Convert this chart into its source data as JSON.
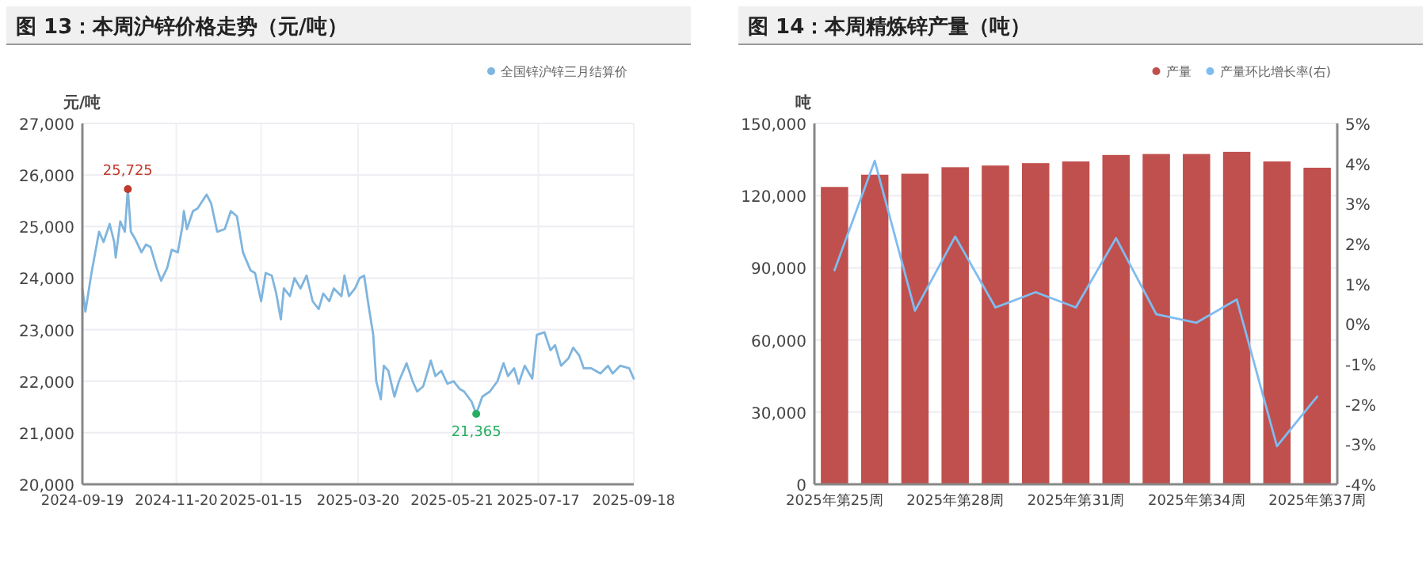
{
  "chart_data": [
    {
      "type": "line",
      "title": "图 13：本周沪锌价格走势（元/吨）",
      "ylabel": "元/吨",
      "legend": "top right",
      "grid": true,
      "marker": "none",
      "line_style": "solid",
      "xlim": [
        "2024-09-19",
        "2025-09-18"
      ],
      "xticks": [
        "2024-09-19",
        "2024-11-20",
        "2025-01-15",
        "2025-03-20",
        "2025-05-21",
        "2025-07-17",
        "2025-09-18"
      ],
      "ylim": [
        20000,
        27000
      ],
      "yticks": [
        {
          "value": 20000,
          "label": "20,000"
        },
        {
          "value": 21000,
          "label": "21,000"
        },
        {
          "value": 22000,
          "label": "22,000"
        },
        {
          "value": 23000,
          "label": "23,000"
        },
        {
          "value": 24000,
          "label": "24,000"
        },
        {
          "value": 25000,
          "label": "25,000"
        },
        {
          "value": 26000,
          "label": "26,000"
        },
        {
          "value": 27000,
          "label": "27,000"
        }
      ],
      "x": [
        "2024-09-19",
        "2024-09-21",
        "2024-09-25",
        "2024-09-30",
        "2024-10-03",
        "2024-10-07",
        "2024-10-10",
        "2024-10-11",
        "2024-10-14",
        "2024-10-17",
        "2024-10-19",
        "2024-10-21",
        "2024-10-24",
        "2024-10-28",
        "2024-10-31",
        "2024-11-03",
        "2024-11-07",
        "2024-11-10",
        "2024-11-14",
        "2024-11-17",
        "2024-11-21",
        "2024-11-24",
        "2024-11-25",
        "2024-11-27",
        "2024-12-01",
        "2024-12-04",
        "2024-12-10",
        "2024-12-13",
        "2024-12-17",
        "2024-12-22",
        "2024-12-26",
        "2024-12-30",
        "2025-01-03",
        "2025-01-08",
        "2025-01-11",
        "2025-01-15",
        "2025-01-18",
        "2025-01-22",
        "2025-01-25",
        "2025-01-28",
        "2025-01-30",
        "2025-02-03",
        "2025-02-06",
        "2025-02-10",
        "2025-02-14",
        "2025-02-18",
        "2025-02-22",
        "2025-02-25",
        "2025-03-01",
        "2025-03-04",
        "2025-03-09",
        "2025-03-11",
        "2025-03-14",
        "2025-03-18",
        "2025-03-21",
        "2025-03-24",
        "2025-03-27",
        "2025-03-30",
        "2025-04-01",
        "2025-04-04",
        "2025-04-06",
        "2025-04-09",
        "2025-04-13",
        "2025-04-16",
        "2025-04-21",
        "2025-04-25",
        "2025-04-28",
        "2025-05-02",
        "2025-05-07",
        "2025-05-10",
        "2025-05-14",
        "2025-05-18",
        "2025-05-22",
        "2025-05-26",
        "2025-05-29",
        "2025-06-03",
        "2025-06-06",
        "2025-06-10",
        "2025-06-15",
        "2025-06-20",
        "2025-06-24",
        "2025-06-27",
        "2025-07-01",
        "2025-07-04",
        "2025-07-08",
        "2025-07-13",
        "2025-07-16",
        "2025-07-21",
        "2025-07-25",
        "2025-07-28",
        "2025-08-01",
        "2025-08-06",
        "2025-08-09",
        "2025-08-13",
        "2025-08-16",
        "2025-08-21",
        "2025-08-27",
        "2025-09-01",
        "2025-09-04",
        "2025-09-09",
        "2025-09-15",
        "2025-09-18"
      ],
      "series": [
        {
          "name": "全国锌沪锌三月结算价",
          "color": "#7fb5de",
          "values": [
            23800,
            23350,
            24100,
            24900,
            24700,
            25050,
            24700,
            24400,
            25100,
            24900,
            25725,
            24900,
            24750,
            24500,
            24650,
            24600,
            24200,
            23950,
            24200,
            24550,
            24500,
            25000,
            25300,
            24950,
            25300,
            25350,
            25620,
            25450,
            24900,
            24950,
            25300,
            25200,
            24500,
            24150,
            24100,
            23550,
            24100,
            24050,
            23700,
            23200,
            23800,
            23650,
            24000,
            23800,
            24050,
            23550,
            23400,
            23700,
            23550,
            23800,
            23650,
            24050,
            23650,
            23800,
            24000,
            24050,
            23450,
            22900,
            22000,
            21650,
            22300,
            22200,
            21700,
            22000,
            22350,
            22000,
            21800,
            21900,
            22400,
            22100,
            22200,
            21950,
            22000,
            21850,
            21800,
            21600,
            21365,
            21700,
            21800,
            22000,
            22350,
            22100,
            22250,
            21950,
            22300,
            22050,
            22900,
            22950,
            22600,
            22700,
            22300,
            22450,
            22650,
            22500,
            22250,
            22250,
            22150,
            22300,
            22150,
            22300,
            22250,
            22050
          ]
        }
      ],
      "annotations": [
        {
          "text": "25,725",
          "x": "2024-10-19",
          "y": 25725
        },
        {
          "text": "21,365",
          "x": "2025-06-06",
          "y": 21365
        }
      ]
    },
    {
      "type": "bar",
      "title": "图 14：本周精炼锌产量（吨）",
      "ylabel": "吨",
      "legend": "top right",
      "grid": "y",
      "categories": [
        "2025年第25周",
        null,
        null,
        "2025年第28周",
        null,
        null,
        "2025年第31周",
        null,
        null,
        "2025年第34周",
        null,
        null,
        "2025年第37周"
      ],
      "ylim": [
        0,
        150000
      ],
      "yticks": [
        0,
        {
          "value": 30000,
          "label": "30,000"
        },
        {
          "value": 60000,
          "label": "60,000"
        },
        {
          "value": 90000,
          "label": "90,000"
        },
        {
          "value": 120000,
          "label": "120,000"
        },
        {
          "value": 150000,
          "label": "150,000"
        }
      ],
      "y2lim": [
        -4,
        5
      ],
      "y2ticks": [
        {
          "value": -4,
          "label": "-4%"
        },
        {
          "value": -3,
          "label": "-3%"
        },
        {
          "value": -2,
          "label": "-2%"
        },
        {
          "value": -1,
          "label": "-1%"
        },
        {
          "value": 0,
          "label": "0%"
        },
        {
          "value": 1,
          "label": "1%"
        },
        {
          "value": 2,
          "label": "2%"
        },
        {
          "value": 3,
          "label": "3%"
        },
        {
          "value": 4,
          "label": "4%"
        },
        {
          "value": 5,
          "label": "5%"
        }
      ],
      "series": [
        {
          "name": "产量",
          "color": "#c0504d",
          "values": [
            123600,
            128700,
            129100,
            131800,
            132500,
            133500,
            134200,
            136900,
            137300,
            137300,
            138200,
            134200,
            131600
          ]
        },
        {
          "name": "产量环比增长率(右)",
          "type": "line",
          "axis": "y2",
          "color": "#7fbcf0",
          "values": [
            1.34,
            4.07,
            0.33,
            2.18,
            0.41,
            0.79,
            0.41,
            2.14,
            0.24,
            0.03,
            0.61,
            -3.05,
            -1.81
          ]
        }
      ]
    }
  ]
}
